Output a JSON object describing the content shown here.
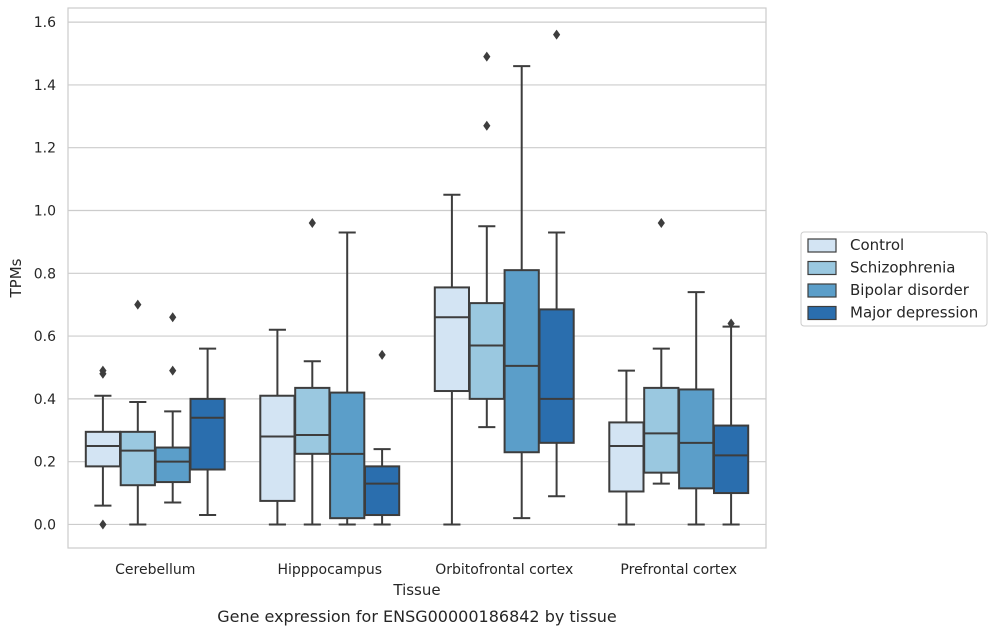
{
  "chart_data": {
    "type": "box",
    "ylabel": "TPMs",
    "xlabel": "Tissue",
    "caption": "Gene expression for ENSG00000186842 by tissue",
    "ylim": [
      -0.075,
      1.645
    ],
    "yticks": [
      "0.0",
      "0.2",
      "0.4",
      "0.6",
      "0.8",
      "1.0",
      "1.2",
      "1.4",
      "1.6"
    ],
    "grid": "horizontal",
    "legend_position": "right",
    "categories": [
      "Cerebellum",
      "Hipppocampus",
      "Orbitofrontal cortex",
      "Prefrontal cortex"
    ],
    "series": [
      {
        "name": "Control",
        "color": "#d3e4f3",
        "boxes": [
          {
            "q1": 0.185,
            "median": 0.25,
            "q3": 0.295,
            "whisker_low": 0.06,
            "whisker_high": 0.41,
            "outliers": [
              0.0,
              0.48,
              0.49
            ]
          },
          {
            "q1": 0.075,
            "median": 0.28,
            "q3": 0.41,
            "whisker_low": 0.0,
            "whisker_high": 0.62,
            "outliers": []
          },
          {
            "q1": 0.425,
            "median": 0.66,
            "q3": 0.755,
            "whisker_low": 0.0,
            "whisker_high": 1.05,
            "outliers": []
          },
          {
            "q1": 0.105,
            "median": 0.25,
            "q3": 0.325,
            "whisker_low": 0.0,
            "whisker_high": 0.49,
            "outliers": []
          }
        ]
      },
      {
        "name": "Schizophrenia",
        "color": "#9ac8e0",
        "boxes": [
          {
            "q1": 0.125,
            "median": 0.235,
            "q3": 0.295,
            "whisker_low": 0.0,
            "whisker_high": 0.39,
            "outliers": [
              0.7
            ]
          },
          {
            "q1": 0.225,
            "median": 0.285,
            "q3": 0.435,
            "whisker_low": 0.0,
            "whisker_high": 0.52,
            "outliers": [
              0.96
            ]
          },
          {
            "q1": 0.4,
            "median": 0.57,
            "q3": 0.705,
            "whisker_low": 0.31,
            "whisker_high": 0.95,
            "outliers": [
              1.27,
              1.49
            ]
          },
          {
            "q1": 0.165,
            "median": 0.29,
            "q3": 0.435,
            "whisker_low": 0.13,
            "whisker_high": 0.56,
            "outliers": [
              0.96
            ]
          }
        ]
      },
      {
        "name": "Bipolar disorder",
        "color": "#5b9ec9",
        "boxes": [
          {
            "q1": 0.135,
            "median": 0.2,
            "q3": 0.245,
            "whisker_low": 0.07,
            "whisker_high": 0.36,
            "outliers": [
              0.49,
              0.66
            ]
          },
          {
            "q1": 0.02,
            "median": 0.225,
            "q3": 0.42,
            "whisker_low": 0.0,
            "whisker_high": 0.93,
            "outliers": []
          },
          {
            "q1": 0.23,
            "median": 0.505,
            "q3": 0.81,
            "whisker_low": 0.02,
            "whisker_high": 1.46,
            "outliers": []
          },
          {
            "q1": 0.115,
            "median": 0.26,
            "q3": 0.43,
            "whisker_low": 0.0,
            "whisker_high": 0.74,
            "outliers": []
          }
        ]
      },
      {
        "name": "Major depression",
        "color": "#2a6eae",
        "boxes": [
          {
            "q1": 0.175,
            "median": 0.34,
            "q3": 0.4,
            "whisker_low": 0.03,
            "whisker_high": 0.56,
            "outliers": []
          },
          {
            "q1": 0.03,
            "median": 0.13,
            "q3": 0.185,
            "whisker_low": 0.0,
            "whisker_high": 0.24,
            "outliers": [
              0.54
            ]
          },
          {
            "q1": 0.26,
            "median": 0.4,
            "q3": 0.685,
            "whisker_low": 0.09,
            "whisker_high": 0.93,
            "outliers": [
              1.56
            ]
          },
          {
            "q1": 0.1,
            "median": 0.22,
            "q3": 0.315,
            "whisker_low": 0.0,
            "whisker_high": 0.63,
            "outliers": [
              0.64
            ]
          }
        ]
      }
    ]
  }
}
